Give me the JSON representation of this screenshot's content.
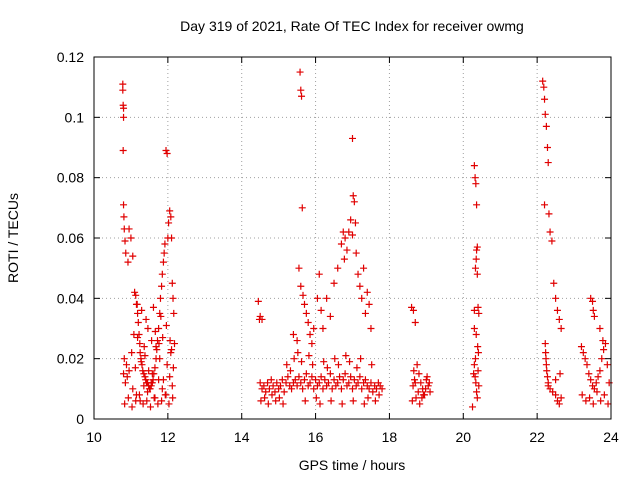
{
  "chart_data": {
    "type": "scatter",
    "title": "Day 319 of 2021, Rate Of TEC Index for receiver owmg",
    "xlabel": "GPS time / hours",
    "ylabel": "ROTI / TECUs",
    "xlim": [
      10,
      24
    ],
    "ylim": [
      0,
      0.12
    ],
    "x_ticks": [
      10,
      12,
      14,
      16,
      18,
      20,
      22,
      24
    ],
    "x_tick_labels": [
      "10",
      "12",
      "14",
      "16",
      "18",
      "20",
      "22",
      "24"
    ],
    "y_ticks": [
      0,
      0.02,
      0.04,
      0.06,
      0.08,
      0.1,
      0.12
    ],
    "y_tick_labels": [
      "0",
      "0.02",
      "0.04",
      "0.06",
      "0.08",
      "0.1",
      "0.12"
    ],
    "grid": true,
    "marker": "+",
    "color": "#e00000",
    "series": [
      {
        "x": [
          10.78,
          10.78,
          10.79,
          10.8,
          10.8,
          10.79,
          10.8,
          10.81,
          10.82,
          10.84,
          10.86,
          10.92,
          10.95,
          11.0,
          11.05,
          11.1,
          11.13,
          11.15,
          11.18,
          11.2,
          11.22,
          11.24,
          11.25,
          11.27,
          11.3,
          11.32,
          11.35,
          11.38,
          11.4,
          11.42,
          11.45,
          11.48,
          11.5,
          11.52,
          11.55,
          11.58,
          11.6,
          11.62,
          11.65,
          11.68,
          11.7,
          11.72,
          11.75,
          11.78,
          11.8,
          11.83,
          11.85,
          11.88,
          11.9,
          11.92,
          11.95,
          11.98,
          12.0,
          12.02,
          12.05,
          12.08,
          12.1,
          12.12,
          12.14,
          12.16,
          12.18,
          10.8,
          10.85,
          10.9,
          10.95,
          11.05,
          11.15,
          11.25,
          11.35,
          11.45,
          11.55,
          11.65,
          11.75,
          11.85,
          11.95,
          12.05,
          12.12,
          10.82,
          10.88,
          11.02,
          11.12,
          11.28,
          11.38,
          11.48,
          11.58,
          11.68,
          11.78,
          11.88,
          11.98,
          12.08,
          12.15,
          10.83,
          10.93,
          11.03,
          11.13,
          11.23,
          11.33,
          11.43,
          11.53,
          11.63,
          11.73,
          11.83,
          11.93,
          12.03,
          12.13,
          11.08,
          11.18,
          11.36,
          11.46,
          11.56,
          11.66,
          11.76,
          11.86,
          11.96,
          12.06,
          12.1,
          11.17,
          11.29,
          11.41,
          11.61,
          11.81,
          14.45,
          14.48,
          14.5,
          14.55,
          14.6,
          14.65,
          14.7,
          14.75,
          14.8,
          14.85,
          14.9,
          14.95,
          15.0,
          15.05,
          15.1,
          15.15,
          15.2,
          15.25,
          15.3,
          15.35,
          15.4,
          15.45,
          15.5,
          15.55,
          15.6,
          15.65,
          15.7,
          15.75,
          15.8,
          15.85,
          15.9,
          15.95,
          16.0,
          16.05,
          16.1,
          16.15,
          16.2,
          16.25,
          16.3,
          16.35,
          16.4,
          16.45,
          16.5,
          16.55,
          16.6,
          16.65,
          16.7,
          16.75,
          16.8,
          16.85,
          16.9,
          16.95,
          17.0,
          17.05,
          17.1,
          17.15,
          17.2,
          17.25,
          17.3,
          17.35,
          17.4,
          17.45,
          17.5,
          17.55,
          17.6,
          17.65,
          17.7,
          17.75,
          17.8,
          14.52,
          14.62,
          14.72,
          14.82,
          14.92,
          15.02,
          15.12,
          15.22,
          15.32,
          15.42,
          15.52,
          15.62,
          15.72,
          15.82,
          15.92,
          16.02,
          16.12,
          16.22,
          16.32,
          16.42,
          16.52,
          16.62,
          16.72,
          16.82,
          16.92,
          17.02,
          17.12,
          17.22,
          17.32,
          17.42,
          17.52,
          17.62,
          17.72,
          15.58,
          15.6,
          15.62,
          15.64,
          15.55,
          15.6,
          15.66,
          15.7,
          15.75,
          15.8,
          15.85,
          15.9,
          15.95,
          16.05,
          16.1,
          16.15,
          16.2,
          16.3,
          16.4,
          16.5,
          16.6,
          16.7,
          16.8,
          16.85,
          16.9,
          16.95,
          17.0,
          17.02,
          17.05,
          17.08,
          17.1,
          17.15,
          17.2,
          17.25,
          17.3,
          17.35,
          17.4,
          17.45,
          17.5,
          14.5,
          14.55,
          15.4,
          15.5,
          16.75,
          16.78,
          17.0,
          18.6,
          18.65,
          18.7,
          18.75,
          18.8,
          18.85,
          18.9,
          18.95,
          19.0,
          19.05,
          19.1,
          18.62,
          18.72,
          18.82,
          18.92,
          19.02,
          18.66,
          18.7,
          18.78,
          18.88,
          18.98,
          19.08,
          18.64,
          18.68,
          20.25,
          20.28,
          20.3,
          20.32,
          20.34,
          20.36,
          20.38,
          20.4,
          20.42,
          20.3,
          20.32,
          20.34,
          20.36,
          20.38,
          20.36,
          20.35,
          20.33,
          20.38,
          20.4,
          20.3,
          20.42,
          20.3,
          20.35,
          20.39,
          20.41,
          20.33,
          22.15,
          22.18,
          22.2,
          22.22,
          22.25,
          22.28,
          22.3,
          22.32,
          22.35,
          22.4,
          22.45,
          22.5,
          22.55,
          22.6,
          22.65,
          22.2,
          22.22,
          22.23,
          22.24,
          22.25,
          22.26,
          22.28,
          22.3,
          22.35,
          22.42,
          22.5,
          22.55,
          22.6,
          22.65,
          22.3,
          22.5,
          22.62,
          23.2,
          23.25,
          23.3,
          23.35,
          23.4,
          23.45,
          23.5,
          23.55,
          23.6,
          23.65,
          23.7,
          23.75,
          23.8,
          23.85,
          23.9,
          23.95,
          23.22,
          23.32,
          23.42,
          23.52,
          23.62,
          23.72,
          23.82,
          23.92,
          23.45,
          23.5,
          23.52,
          23.55,
          23.7,
          23.78
        ],
        "y": [
          0.111,
          0.109,
          0.104,
          0.103,
          0.1,
          0.089,
          0.071,
          0.067,
          0.063,
          0.059,
          0.055,
          0.052,
          0.063,
          0.06,
          0.054,
          0.042,
          0.041,
          0.038,
          0.035,
          0.032,
          0.028,
          0.025,
          0.022,
          0.02,
          0.018,
          0.016,
          0.015,
          0.014,
          0.013,
          0.012,
          0.012,
          0.011,
          0.01,
          0.01,
          0.011,
          0.012,
          0.013,
          0.015,
          0.017,
          0.02,
          0.023,
          0.026,
          0.03,
          0.035,
          0.04,
          0.044,
          0.048,
          0.052,
          0.055,
          0.058,
          0.089,
          0.088,
          0.06,
          0.065,
          0.069,
          0.067,
          0.06,
          0.045,
          0.04,
          0.035,
          0.025,
          0.015,
          0.012,
          0.014,
          0.016,
          0.01,
          0.008,
          0.006,
          0.011,
          0.009,
          0.012,
          0.007,
          0.013,
          0.01,
          0.008,
          0.014,
          0.011,
          0.02,
          0.018,
          0.022,
          0.017,
          0.019,
          0.021,
          0.016,
          0.015,
          0.024,
          0.02,
          0.013,
          0.018,
          0.022,
          0.017,
          0.005,
          0.007,
          0.004,
          0.006,
          0.008,
          0.005,
          0.006,
          0.004,
          0.007,
          0.005,
          0.006,
          0.008,
          0.005,
          0.007,
          0.028,
          0.027,
          0.024,
          0.03,
          0.026,
          0.029,
          0.025,
          0.027,
          0.031,
          0.026,
          0.023,
          0.038,
          0.036,
          0.033,
          0.037,
          0.034,
          0.039,
          0.033,
          0.012,
          0.01,
          0.011,
          0.009,
          0.012,
          0.01,
          0.013,
          0.011,
          0.009,
          0.012,
          0.01,
          0.011,
          0.013,
          0.009,
          0.012,
          0.014,
          0.011,
          0.01,
          0.012,
          0.013,
          0.011,
          0.014,
          0.012,
          0.01,
          0.013,
          0.015,
          0.011,
          0.012,
          0.014,
          0.01,
          0.013,
          0.011,
          0.012,
          0.014,
          0.01,
          0.013,
          0.011,
          0.012,
          0.015,
          0.01,
          0.013,
          0.011,
          0.012,
          0.014,
          0.01,
          0.013,
          0.015,
          0.011,
          0.012,
          0.014,
          0.01,
          0.013,
          0.011,
          0.012,
          0.014,
          0.01,
          0.012,
          0.013,
          0.011,
          0.01,
          0.012,
          0.009,
          0.011,
          0.01,
          0.012,
          0.011,
          0.01,
          0.006,
          0.007,
          0.005,
          0.008,
          0.006,
          0.007,
          0.005,
          0.018,
          0.016,
          0.02,
          0.022,
          0.019,
          0.006,
          0.021,
          0.018,
          0.007,
          0.005,
          0.019,
          0.017,
          0.006,
          0.02,
          0.018,
          0.005,
          0.021,
          0.019,
          0.006,
          0.017,
          0.02,
          0.005,
          0.007,
          0.018,
          0.006,
          0.008,
          0.115,
          0.109,
          0.107,
          0.07,
          0.05,
          0.044,
          0.041,
          0.038,
          0.035,
          0.032,
          0.028,
          0.025,
          0.03,
          0.04,
          0.048,
          0.036,
          0.03,
          0.04,
          0.034,
          0.045,
          0.05,
          0.058,
          0.06,
          0.056,
          0.062,
          0.066,
          0.093,
          0.074,
          0.072,
          0.065,
          0.055,
          0.048,
          0.044,
          0.04,
          0.05,
          0.035,
          0.042,
          0.038,
          0.03,
          0.034,
          0.033,
          0.028,
          0.026,
          0.062,
          0.053,
          0.061,
          0.037,
          0.036,
          0.032,
          0.018,
          0.015,
          0.012,
          0.01,
          0.008,
          0.013,
          0.011,
          0.009,
          0.006,
          0.007,
          0.005,
          0.008,
          0.014,
          0.016,
          0.012,
          0.009,
          0.007,
          0.01,
          0.012,
          0.011,
          0.013,
          0.004,
          0.015,
          0.018,
          0.014,
          0.012,
          0.009,
          0.007,
          0.016,
          0.011,
          0.084,
          0.08,
          0.078,
          0.071,
          0.057,
          0.056,
          0.053,
          0.05,
          0.048,
          0.037,
          0.036,
          0.035,
          0.03,
          0.028,
          0.024,
          0.022,
          0.02,
          0.112,
          0.11,
          0.106,
          0.101,
          0.097,
          0.09,
          0.085,
          0.068,
          0.062,
          0.059,
          0.045,
          0.04,
          0.036,
          0.033,
          0.03,
          0.071,
          0.025,
          0.022,
          0.02,
          0.018,
          0.016,
          0.014,
          0.012,
          0.01,
          0.009,
          0.008,
          0.006,
          0.005,
          0.007,
          0.011,
          0.013,
          0.015,
          0.024,
          0.022,
          0.02,
          0.018,
          0.015,
          0.013,
          0.011,
          0.01,
          0.012,
          0.014,
          0.016,
          0.02,
          0.023,
          0.025,
          0.018,
          0.012,
          0.008,
          0.006,
          0.007,
          0.005,
          0.009,
          0.006,
          0.008,
          0.005,
          0.04,
          0.039,
          0.036,
          0.034,
          0.03,
          0.026
        ]
      }
    ]
  }
}
